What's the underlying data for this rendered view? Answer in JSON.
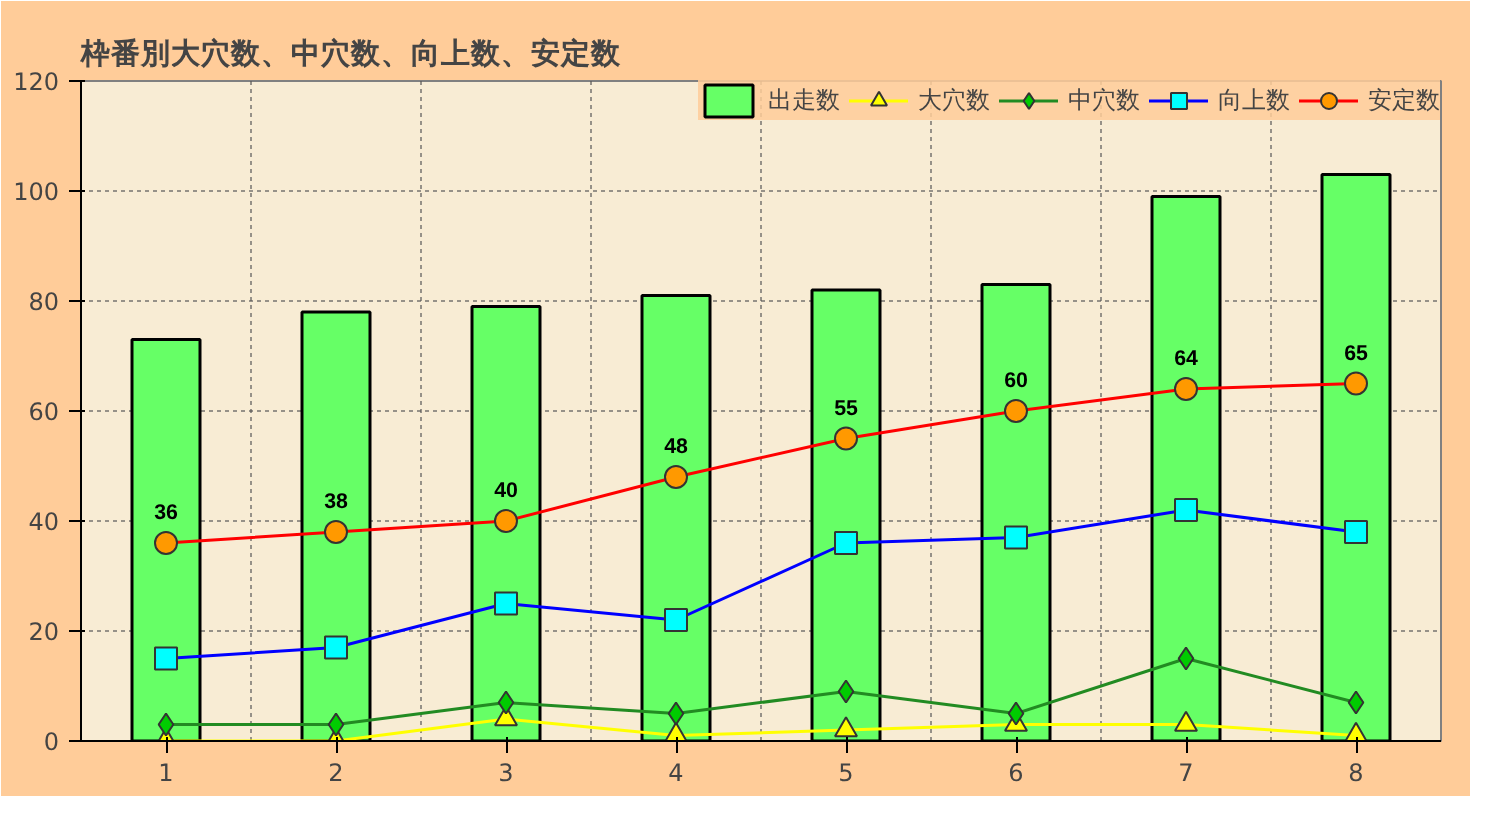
{
  "chart_data": {
    "type": "bar",
    "title": "枠番別大穴数、中穴数、向上数、安定数",
    "categories": [
      "1",
      "2",
      "3",
      "4",
      "5",
      "6",
      "7",
      "8"
    ],
    "series": [
      {
        "name": "出走数",
        "color": "#66ff66",
        "values": [
          73,
          78,
          79,
          81,
          82,
          83,
          99,
          103
        ]
      },
      {
        "name": "大穴数",
        "type": "line",
        "marker": "triangle",
        "color": "#ffff00",
        "values": [
          0,
          0,
          4,
          1,
          2,
          3,
          3,
          1
        ]
      },
      {
        "name": "中穴数",
        "type": "line",
        "marker": "diamond",
        "color": "#228b22",
        "values": [
          3,
          3,
          7,
          5,
          9,
          5,
          15,
          7
        ]
      },
      {
        "name": "向上数",
        "type": "line",
        "marker": "square",
        "color": "#0000ff",
        "values": [
          15,
          17,
          25,
          22,
          36,
          37,
          42,
          38
        ]
      },
      {
        "name": "安定数",
        "type": "line",
        "marker": "circle",
        "color": "#ff0000",
        "values": [
          36,
          38,
          40,
          48,
          55,
          60,
          64,
          65
        ],
        "value_labels": [
          "36",
          "38",
          "40",
          "48",
          "55",
          "60",
          "64",
          "65"
        ]
      }
    ],
    "ylim": [
      0,
      120
    ],
    "yticks": [
      0,
      20,
      40,
      60,
      80,
      100,
      120
    ],
    "grid": true,
    "legend": "top right"
  }
}
